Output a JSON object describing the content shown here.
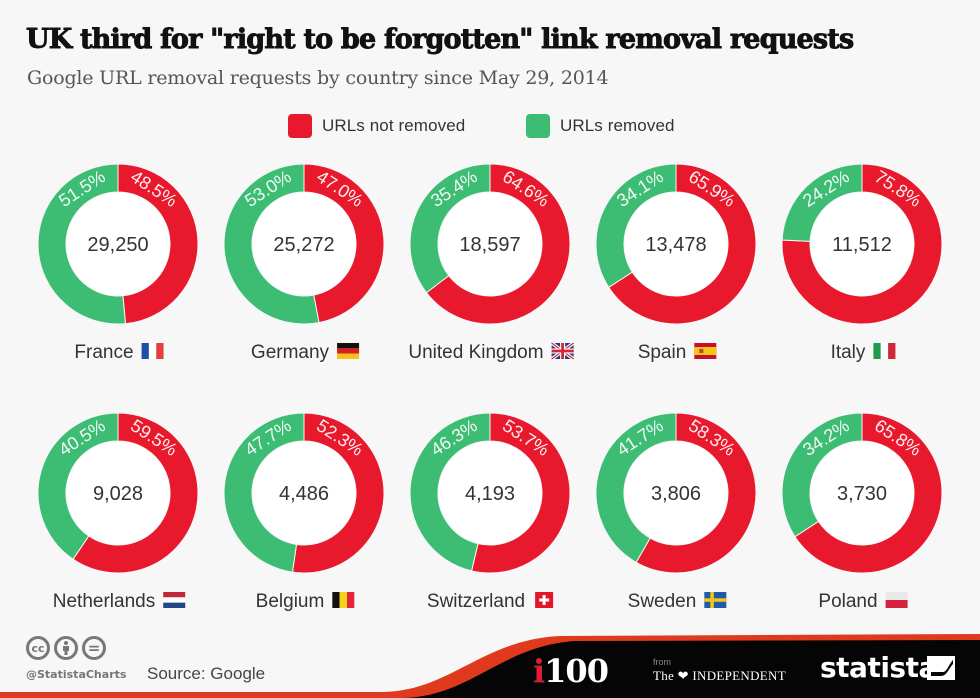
{
  "header": {
    "title": "UK third for \"right to be forgotten\" link removal requests",
    "subtitle": "Google URL removal requests by country since May 29, 2014"
  },
  "legend": {
    "items": [
      {
        "label": "URLs not removed",
        "color": "#e8192c"
      },
      {
        "label": "URLs removed",
        "color": "#3dbd74"
      }
    ]
  },
  "colors": {
    "not_removed": "#e8192c",
    "removed": "#3dbd74",
    "background": "#f7f7f7"
  },
  "chart_data": {
    "type": "pie",
    "subtype": "donut-grid",
    "title": "UK third for \"right to be forgotten\" link removal requests",
    "subtitle": "Google URL removal requests by country since May 29, 2014",
    "legend_position": "top-center",
    "series_names": [
      "URLs not removed",
      "URLs removed"
    ],
    "charts": [
      {
        "country": "France",
        "flag": "france-flag",
        "total": "29,250",
        "not_removed_pct": 48.5,
        "removed_pct": 51.5
      },
      {
        "country": "Germany",
        "flag": "germany-flag",
        "total": "25,272",
        "not_removed_pct": 47.0,
        "removed_pct": 53.0
      },
      {
        "country": "United Kingdom",
        "flag": "uk-flag",
        "total": "18,597",
        "not_removed_pct": 64.6,
        "removed_pct": 35.4
      },
      {
        "country": "Spain",
        "flag": "spain-flag",
        "total": "13,478",
        "not_removed_pct": 65.9,
        "removed_pct": 34.1
      },
      {
        "country": "Italy",
        "flag": "italy-flag",
        "total": "11,512",
        "not_removed_pct": 75.8,
        "removed_pct": 24.2
      },
      {
        "country": "Netherlands",
        "flag": "netherlands-flag",
        "total": "9,028",
        "not_removed_pct": 59.5,
        "removed_pct": 40.5
      },
      {
        "country": "Belgium",
        "flag": "belgium-flag",
        "total": "4,486",
        "not_removed_pct": 52.3,
        "removed_pct": 47.7
      },
      {
        "country": "Switzerland",
        "flag": "switzerland-flag",
        "total": "4,193",
        "not_removed_pct": 53.7,
        "removed_pct": 46.3
      },
      {
        "country": "Sweden",
        "flag": "sweden-flag",
        "total": "3,806",
        "not_removed_pct": 58.3,
        "removed_pct": 41.7
      },
      {
        "country": "Poland",
        "flag": "poland-flag",
        "total": "3,730",
        "not_removed_pct": 65.8,
        "removed_pct": 34.2
      }
    ]
  },
  "footer": {
    "license_icons": [
      "cc-icon",
      "by-icon",
      "nd-icon"
    ],
    "cc_text": "cc",
    "nd_text": "=",
    "handle": "@StatistaCharts",
    "source": "Source: Google",
    "brand_i100_i": "i",
    "brand_i100_rest": "100",
    "brand_from": "from",
    "brand_independent": "The ❤ INDEPENDENT",
    "brand_statista": "statista"
  }
}
